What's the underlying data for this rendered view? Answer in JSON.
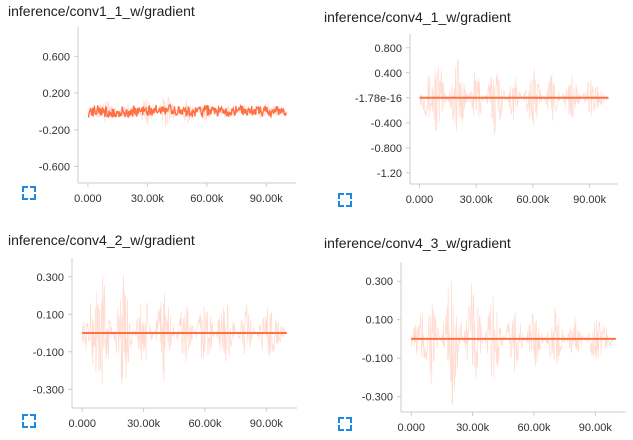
{
  "chart_data": [
    {
      "type": "line",
      "title": "inference/conv1_1_w/gradient",
      "yticks": [
        0.6,
        0.2,
        -0.2,
        -0.6
      ],
      "ytick_labels": [
        "0.600",
        "0.200",
        "-0.200",
        "-0.600"
      ],
      "ylim": [
        -0.78,
        0.92
      ],
      "xticks": [
        0,
        30000,
        60000,
        90000
      ],
      "xtick_labels": [
        "0.000",
        "30.00k",
        "60.00k",
        "90.00k"
      ],
      "xlim": [
        -5000,
        105000
      ],
      "series": [
        {
          "values": [
            [
              0,
              0.0
            ],
            [
              5000,
              0.01
            ],
            [
              10000,
              -0.01
            ],
            [
              20000,
              0.0
            ],
            [
              30000,
              0.01
            ],
            [
              40000,
              0.02
            ],
            [
              50000,
              -0.01
            ],
            [
              60000,
              0.01
            ],
            [
              70000,
              0.0
            ],
            [
              80000,
              0.01
            ],
            [
              90000,
              0.0
            ],
            [
              100000,
              0.0
            ]
          ],
          "color": "#ff7043",
          "smoothed": true
        },
        {
          "values": [
            [
              0,
              0.02
            ],
            [
              10000,
              0.06
            ],
            [
              20000,
              -0.05
            ],
            [
              30000,
              0.08
            ],
            [
              40000,
              -0.1
            ],
            [
              50000,
              0.07
            ],
            [
              60000,
              -0.06
            ],
            [
              70000,
              0.05
            ],
            [
              80000,
              -0.04
            ],
            [
              90000,
              0.06
            ],
            [
              100000,
              0.0
            ]
          ],
          "color": "#ffccbc",
          "smoothed": false
        }
      ],
      "grid": false
    },
    {
      "type": "line",
      "title": "inference/conv4_1_w/gradient",
      "yticks": [
        0.8,
        0.4,
        0.0,
        -0.4,
        -0.8,
        -1.2
      ],
      "ytick_labels": [
        "0.800",
        "0.400",
        "-1.78e-16",
        "-0.400",
        "-0.800",
        "-1.20"
      ],
      "ylim": [
        -1.38,
        1.02
      ],
      "xticks": [
        0,
        30000,
        60000,
        90000
      ],
      "xtick_labels": [
        "0.000",
        "30.00k",
        "60.00k",
        "90.00k"
      ],
      "xlim": [
        -5000,
        105000
      ],
      "series": [
        {
          "values": [
            [
              0,
              0.0
            ],
            [
              20000,
              0.0
            ],
            [
              40000,
              0.0
            ],
            [
              60000,
              0.0
            ],
            [
              80000,
              0.0
            ],
            [
              100000,
              0.0
            ]
          ],
          "color": "#ff7043",
          "smoothed": true
        },
        {
          "values": [
            [
              0,
              0.05
            ],
            [
              10000,
              0.3
            ],
            [
              20000,
              -0.35
            ],
            [
              30000,
              0.25
            ],
            [
              40000,
              -0.3
            ],
            [
              50000,
              0.2
            ],
            [
              60000,
              -0.25
            ],
            [
              70000,
              0.2
            ],
            [
              80000,
              -0.2
            ],
            [
              90000,
              0.15
            ],
            [
              100000,
              0.0
            ]
          ],
          "color": "#ffccbc",
          "smoothed": false
        }
      ],
      "grid": false
    },
    {
      "type": "line",
      "title": "inference/conv4_2_w/gradient",
      "yticks": [
        0.3,
        0.1,
        -0.1,
        -0.3
      ],
      "ytick_labels": [
        "0.300",
        "0.100",
        "-0.100",
        "-0.300"
      ],
      "ylim": [
        -0.4,
        0.4
      ],
      "xticks": [
        0,
        30000,
        60000,
        90000
      ],
      "xtick_labels": [
        "0.000",
        "30.00k",
        "60.00k",
        "90.00k"
      ],
      "xlim": [
        -5000,
        105000
      ],
      "series": [
        {
          "values": [
            [
              0,
              0.0
            ],
            [
              20000,
              0.0
            ],
            [
              40000,
              0.0
            ],
            [
              60000,
              0.0
            ],
            [
              80000,
              0.0
            ],
            [
              100000,
              0.0
            ]
          ],
          "color": "#ff7043",
          "smoothed": true
        },
        {
          "values": [
            [
              0,
              0.02
            ],
            [
              10000,
              0.15
            ],
            [
              20000,
              -0.15
            ],
            [
              30000,
              0.12
            ],
            [
              40000,
              -0.12
            ],
            [
              50000,
              0.1
            ],
            [
              60000,
              -0.1
            ],
            [
              70000,
              0.1
            ],
            [
              80000,
              -0.08
            ],
            [
              90000,
              0.08
            ],
            [
              100000,
              0.0
            ]
          ],
          "color": "#ffccbc",
          "smoothed": false
        }
      ],
      "grid": false
    },
    {
      "type": "line",
      "title": "inference/conv4_3_w/gradient",
      "yticks": [
        0.3,
        0.1,
        -0.1,
        -0.3
      ],
      "ytick_labels": [
        "0.300",
        "0.100",
        "-0.100",
        "-0.300"
      ],
      "ylim": [
        -0.38,
        0.4
      ],
      "xticks": [
        0,
        30000,
        60000,
        90000
      ],
      "xtick_labels": [
        "0.000",
        "30.00k",
        "60.00k",
        "90.00k"
      ],
      "xlim": [
        -5000,
        105000
      ],
      "series": [
        {
          "values": [
            [
              0,
              0.0
            ],
            [
              20000,
              0.0
            ],
            [
              40000,
              0.0
            ],
            [
              60000,
              0.0
            ],
            [
              80000,
              0.0
            ],
            [
              100000,
              0.0
            ]
          ],
          "color": "#ff7043",
          "smoothed": true
        },
        {
          "values": [
            [
              0,
              0.02
            ],
            [
              10000,
              0.12
            ],
            [
              20000,
              -0.18
            ],
            [
              30000,
              0.15
            ],
            [
              40000,
              -0.12
            ],
            [
              50000,
              0.1
            ],
            [
              60000,
              -0.08
            ],
            [
              70000,
              0.08
            ],
            [
              80000,
              -0.06
            ],
            [
              90000,
              0.06
            ],
            [
              100000,
              0.0
            ]
          ],
          "color": "#ffccbc",
          "smoothed": false
        }
      ],
      "grid": false
    }
  ],
  "icons": {
    "expand": "fullscreen-expand-icon"
  },
  "colors": {
    "smoothed": "#ff7043",
    "raw": "#ffccbc",
    "expand_icon": "#1e88e5",
    "axis": "#cccccc"
  }
}
